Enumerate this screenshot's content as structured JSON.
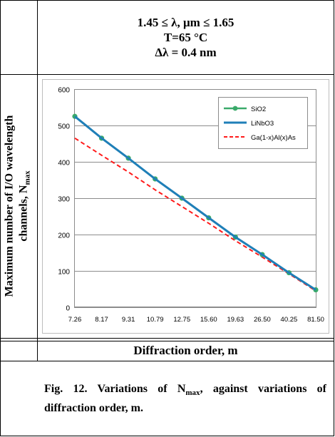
{
  "conditions": {
    "line1": "1.45 ≤ λ, μm ≤ 1.65",
    "line2": "T=65 °C",
    "line3": "Δλ = 0.4 nm"
  },
  "y_axis_title": {
    "line1": "Maximum number of I/O wavelength",
    "line2_main": "channels, N",
    "line2_sub": "max"
  },
  "x_axis_title": "Diffraction order, m",
  "caption": {
    "prefix": "Fig. 12. Variations of   N",
    "sub": "max",
    "suffix": ", against variations of diffraction order, m."
  },
  "chart_data": {
    "type": "line",
    "categories": [
      "7.26",
      "8.17",
      "9.31",
      "10.79",
      "12.75",
      "15.60",
      "19.63",
      "26.50",
      "40.25",
      "81.50"
    ],
    "ylim": [
      0,
      600
    ],
    "yticks": [
      0,
      100,
      200,
      300,
      400,
      500,
      600
    ],
    "grid": true,
    "legend_position": "top-right",
    "series": [
      {
        "name": "SiO2",
        "values": [
          525,
          465,
          410,
          353,
          300,
          246,
          193,
          145,
          95,
          48
        ],
        "color": "#3aaa6a",
        "style": "solid-markers"
      },
      {
        "name": "LiNbO3",
        "values": [
          525,
          465,
          410,
          353,
          300,
          246,
          193,
          145,
          95,
          48
        ],
        "color": "#1f7fb8",
        "style": "solid"
      },
      {
        "name": "Ga(1-x)Al(x)As",
        "values": [
          465,
          418,
          372,
          323,
          277,
          231,
          183,
          138,
          92,
          45
        ],
        "color": "#ff1a1a",
        "style": "dashed"
      }
    ]
  }
}
